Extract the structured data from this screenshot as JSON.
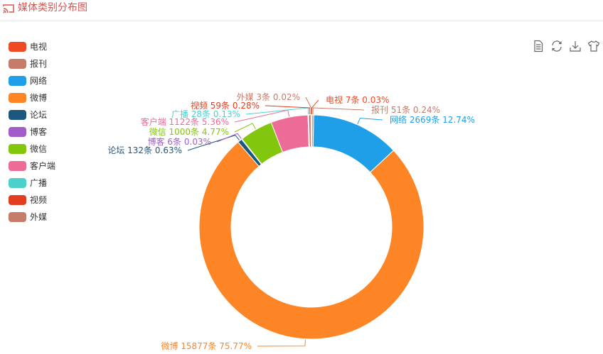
{
  "header": {
    "title": "媒体类别分布图"
  },
  "icons": {
    "title_icon": "cast-icon",
    "toolbox": [
      "data-view-icon",
      "restore-icon",
      "save-image-icon",
      "theme-shirt-icon"
    ]
  },
  "colors": {
    "title": "#d9534f"
  },
  "chart_data": {
    "type": "pie",
    "variant": "donut",
    "title": "媒体类别分布图",
    "legend_position": "left",
    "categories": [
      "电视",
      "报刊",
      "网络",
      "微博",
      "论坛",
      "博客",
      "微信",
      "客户端",
      "广播",
      "视频",
      "外媒"
    ],
    "values": [
      7,
      51,
      2669,
      15877,
      132,
      6,
      1000,
      1122,
      28,
      59,
      3
    ],
    "colors": [
      "#f04a24",
      "#c67c6a",
      "#1f9fe8",
      "#fe8526",
      "#1e577d",
      "#a35dc9",
      "#83c60e",
      "#ec6b97",
      "#4bd0cc",
      "#e23d20",
      "#c67c6a"
    ],
    "data_labels": [
      "电视 7条  0.03%",
      "报刊 51条  0.24%",
      "网络 2669条  12.74%",
      "微博 15877条  75.77%",
      "论坛 132条  0.63%",
      "博客 6条  0.03%",
      "微信 1000条  4.77%",
      "客户端 1122条  5.36%",
      "广播 28条  0.13%",
      "视频 59条  0.28%",
      "外媒 3条  0.02%"
    ]
  }
}
